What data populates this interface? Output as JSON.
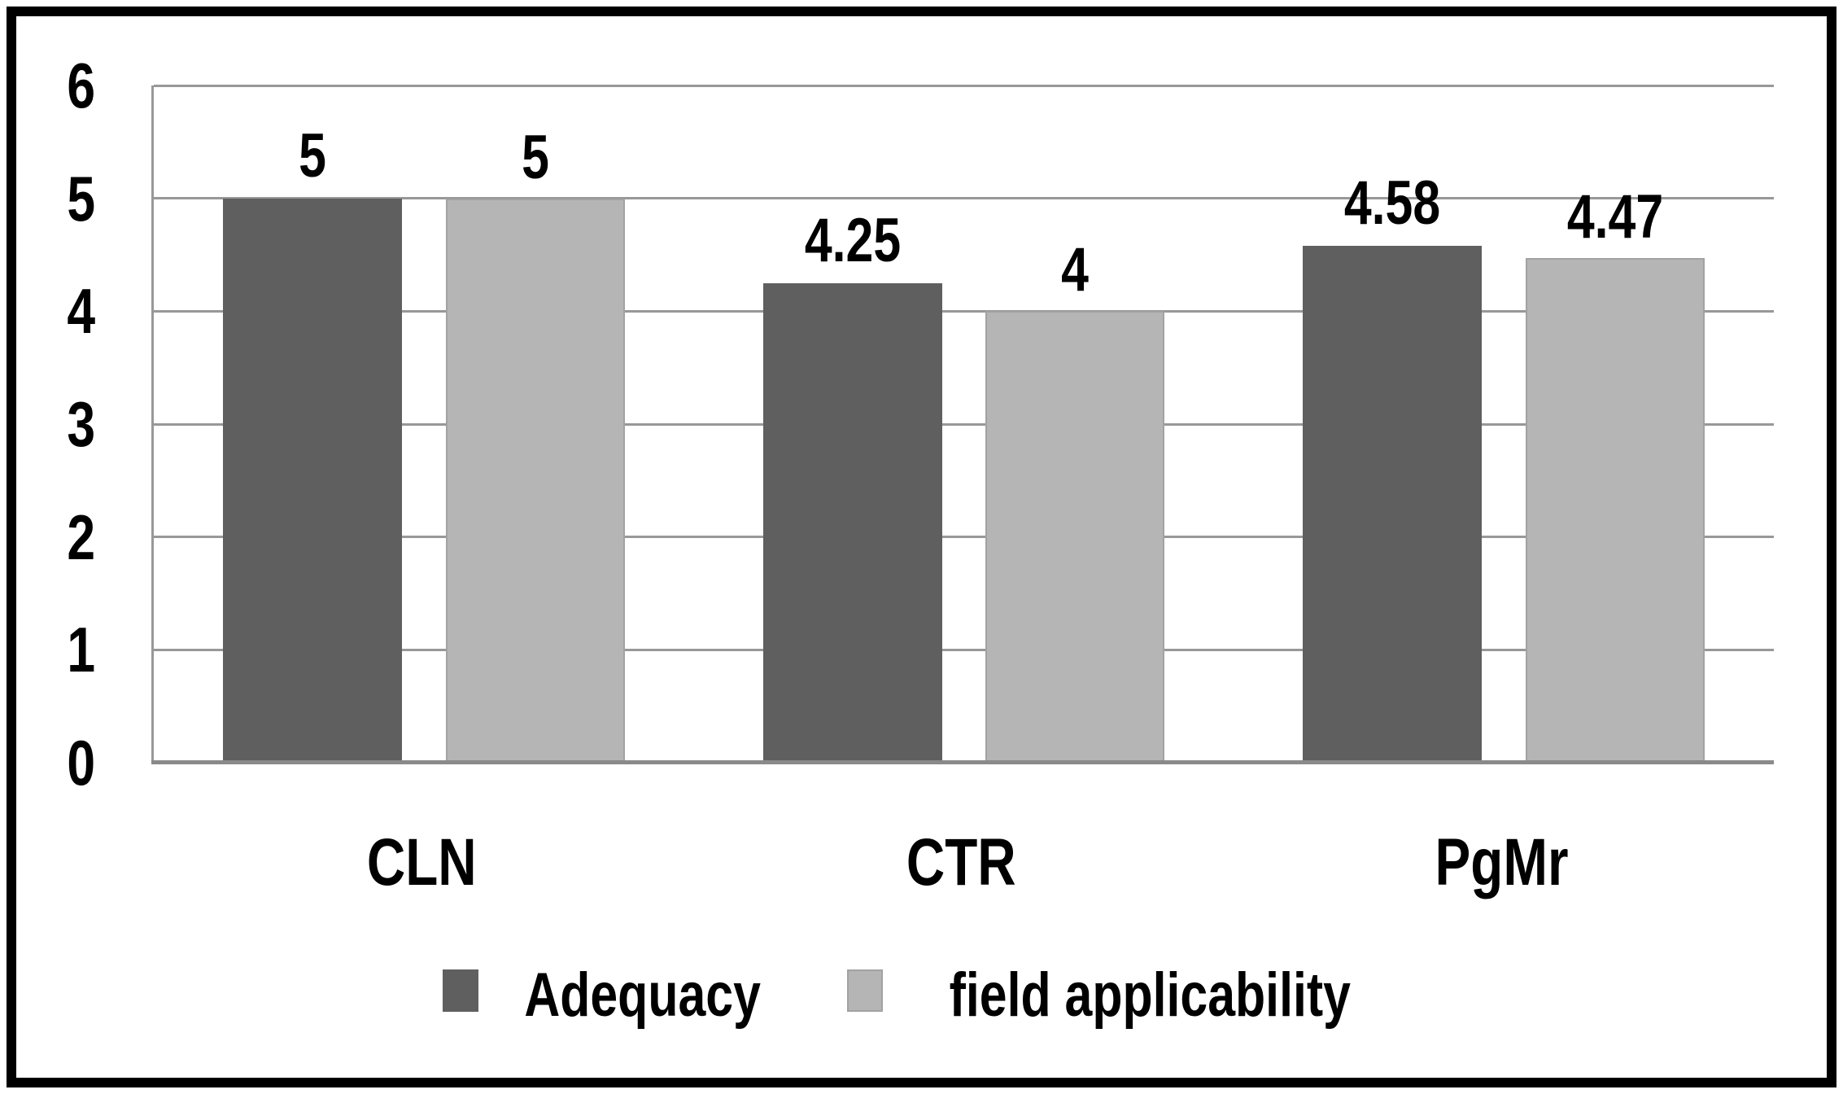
{
  "chart_data": {
    "type": "bar",
    "title": "",
    "xlabel": "",
    "ylabel": "",
    "categories": [
      "CLN",
      "CTR",
      "PgMr"
    ],
    "series": [
      {
        "name": "Adequacy",
        "color": "#5f5f5f",
        "values": [
          5,
          4.25,
          4.58
        ]
      },
      {
        "name": "field applicability",
        "color": "#b5b5b5",
        "values": [
          5,
          4,
          4.47
        ]
      }
    ],
    "ylim": [
      0,
      6
    ],
    "yticks": [
      0,
      1,
      2,
      3,
      4,
      5,
      6
    ],
    "grid": "horizontal-major",
    "data_labels": true,
    "legend_position": "bottom"
  },
  "styles": {
    "grid_color": "#989898",
    "axis_color": "#8a8a8a",
    "frame_border_color": "#000000",
    "text_color": "#000000",
    "light_bar_border_color": "#a2a2a2",
    "background_color": "#ffffff"
  }
}
